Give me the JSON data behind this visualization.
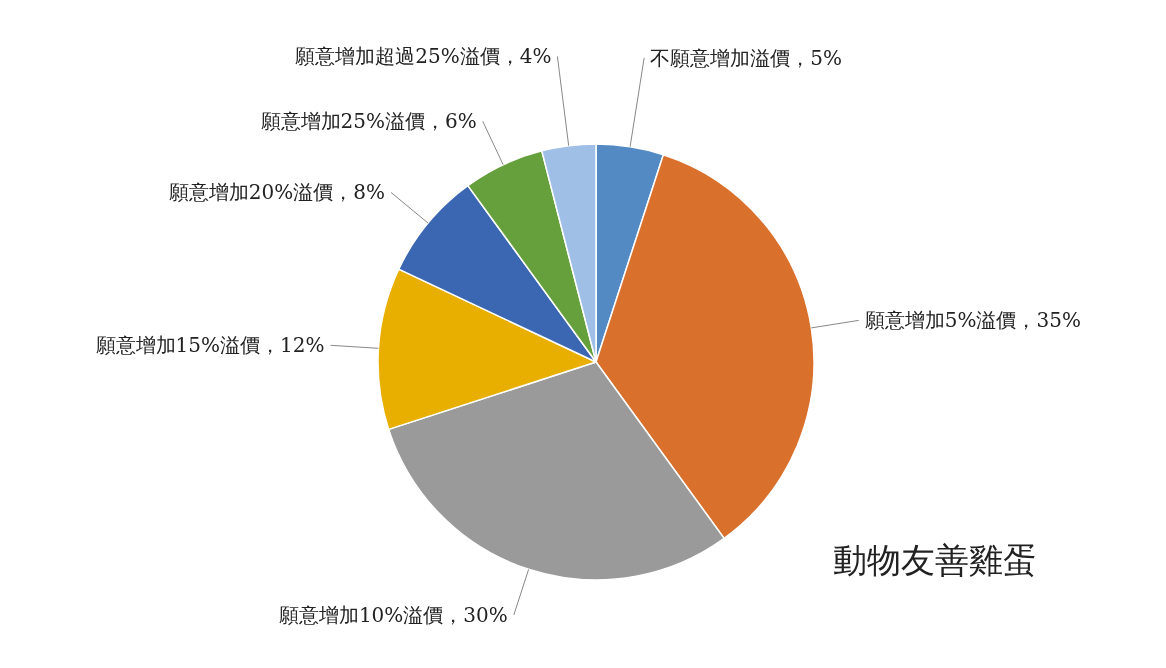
{
  "chart_data": {
    "type": "pie",
    "title": "動物友善雞蛋",
    "categories": [
      "不願意增加溢價",
      "願意增加5%溢價",
      "願意增加10%溢價",
      "願意增加15%溢價",
      "願意增加20%溢價",
      "願意增加25%溢價",
      "願意增加超過25%溢價"
    ],
    "values": [
      5,
      35,
      30,
      12,
      8,
      6,
      4
    ],
    "value_labels": [
      "5%",
      "35%",
      "30%",
      "12%",
      "8%",
      "6%",
      "4%"
    ],
    "colors": [
      "#538ac4",
      "#d9702c",
      "#9a9a9a",
      "#e8ae00",
      "#3b66b2",
      "#66a03c",
      "#9fbfe6"
    ],
    "legend": false
  }
}
